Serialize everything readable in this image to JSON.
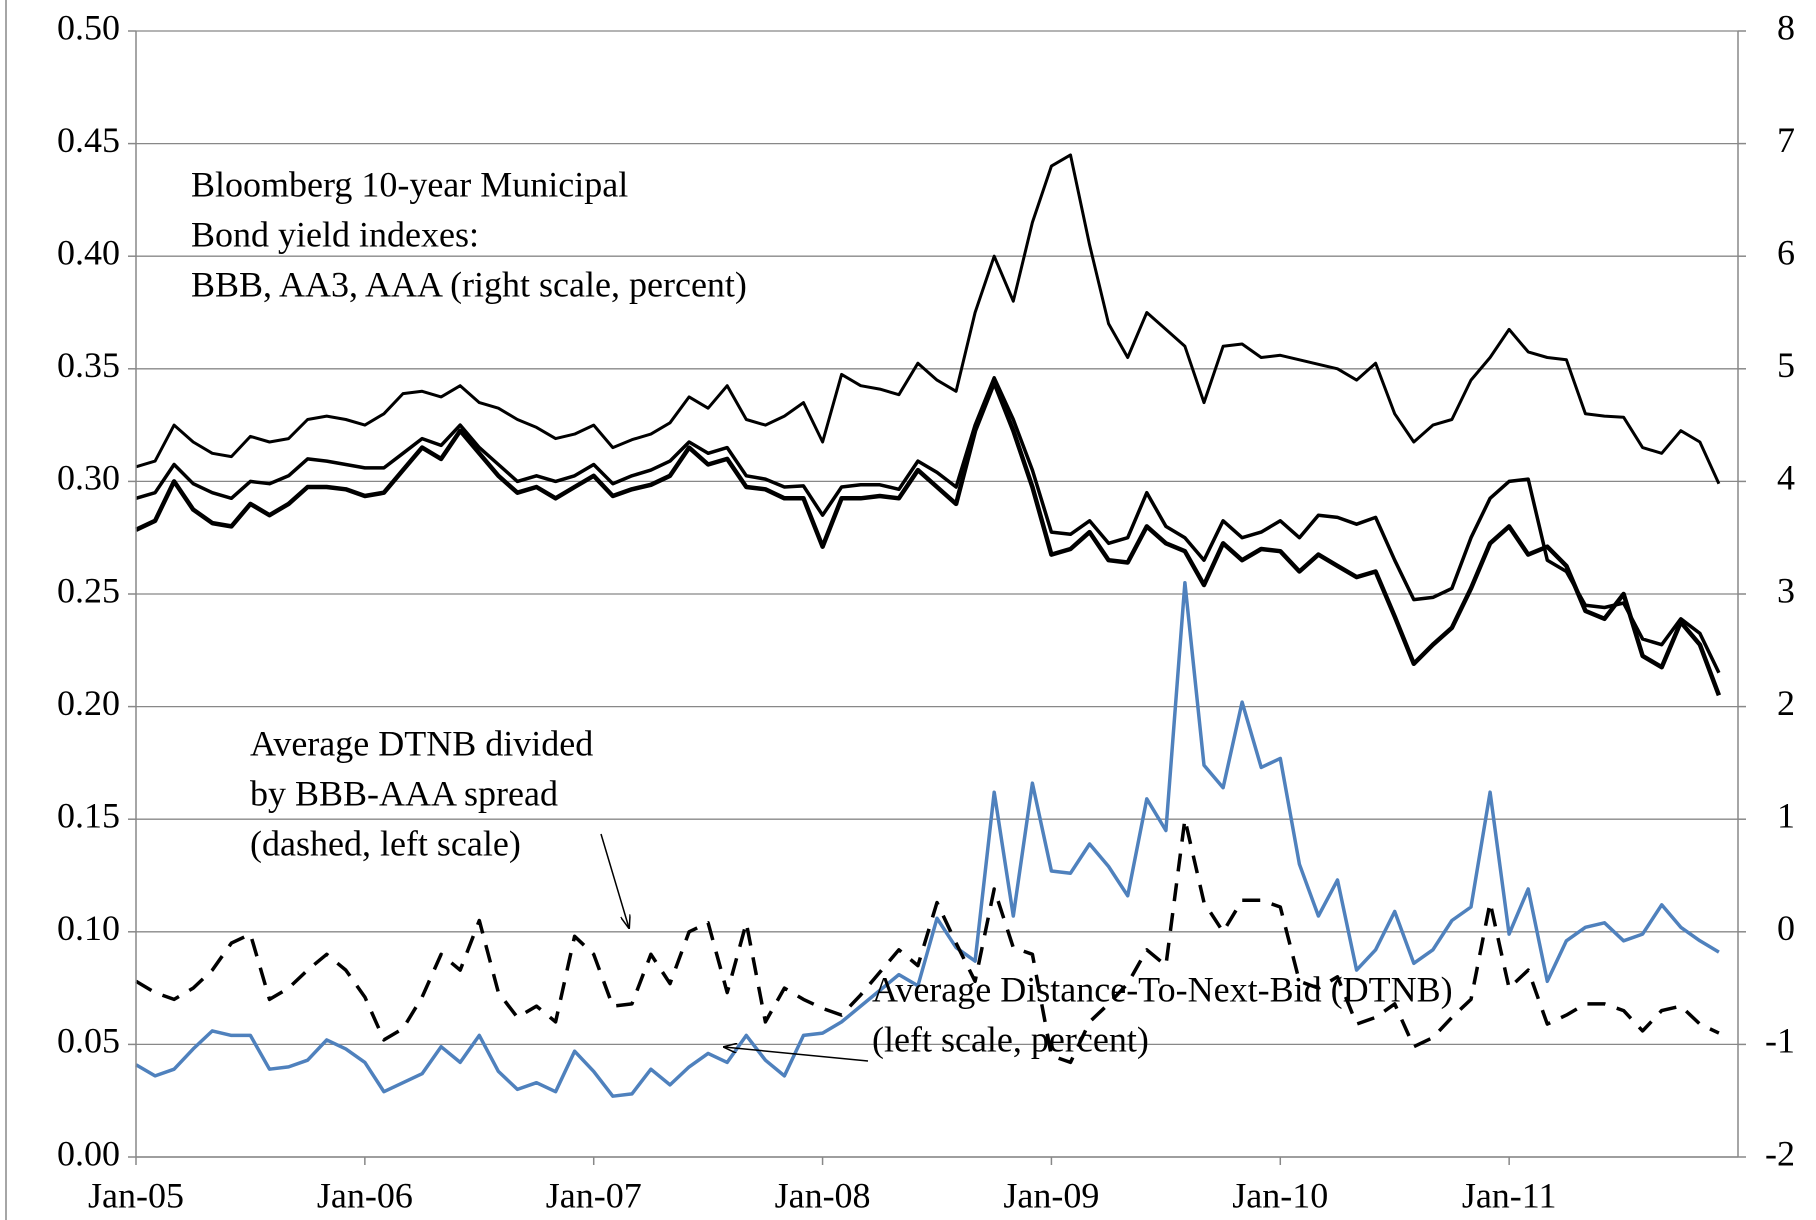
{
  "chart_data": {
    "type": "line",
    "categories": [
      "Jan-05",
      null,
      null,
      null,
      null,
      null,
      null,
      null,
      null,
      null,
      null,
      null,
      "Jan-06",
      null,
      null,
      null,
      null,
      null,
      null,
      null,
      null,
      null,
      null,
      null,
      "Jan-07",
      null,
      null,
      null,
      null,
      null,
      null,
      null,
      null,
      null,
      null,
      null,
      "Jan-08",
      null,
      null,
      null,
      null,
      null,
      null,
      null,
      null,
      null,
      null,
      null,
      "Jan-09",
      null,
      null,
      null,
      null,
      null,
      null,
      null,
      null,
      null,
      null,
      null,
      "Jan-10",
      null,
      null,
      null,
      null,
      null,
      null,
      null,
      null,
      null,
      null,
      null,
      "Jan-11",
      null,
      null,
      null,
      null,
      null,
      null,
      null,
      null,
      null,
      null,
      null
    ],
    "ylim": [
      0,
      0.5
    ],
    "yticks": [
      {
        "value": 0,
        "label": "0.00"
      },
      {
        "value": 0.05,
        "label": "0.05"
      },
      {
        "value": 0.1,
        "label": "0.10"
      },
      {
        "value": 0.15,
        "label": "0.15"
      },
      {
        "value": 0.2,
        "label": "0.20"
      },
      {
        "value": 0.25,
        "label": "0.25"
      },
      {
        "value": 0.3,
        "label": "0.30"
      },
      {
        "value": 0.35,
        "label": "0.35"
      },
      {
        "value": 0.4,
        "label": "0.40"
      },
      {
        "value": 0.45,
        "label": "0.45"
      },
      {
        "value": 0.5,
        "label": "0.50"
      }
    ],
    "y2lim": [
      -2,
      8
    ],
    "y2ticks": [
      -2,
      -1,
      0,
      1,
      2,
      3,
      4,
      5,
      6,
      7,
      8
    ],
    "grid": true,
    "annotations": [
      [
        "Bloomberg 10-year Municipal",
        "Bond yield indexes:",
        "BBB, AA3, AAA (right scale, percent)"
      ],
      [
        "Average DTNB divided",
        "by BBB-AAA spread",
        "(dashed, left scale)"
      ],
      [
        "Average Distance-To-Next-Bid (DTNB)",
        "(left scale, percent)"
      ]
    ],
    "series": [
      {
        "color": "#4f81bd",
        "axis": "y",
        "dashed": false,
        "values": [
          0.041,
          0.036,
          0.039,
          0.048,
          0.056,
          0.054,
          0.054,
          0.039,
          0.04,
          0.043,
          0.052,
          0.048,
          0.042,
          0.029,
          0.033,
          0.037,
          0.049,
          0.042,
          0.054,
          0.038,
          0.03,
          0.033,
          0.029,
          0.047,
          0.038,
          0.027,
          0.028,
          0.039,
          0.032,
          0.04,
          0.046,
          0.042,
          0.054,
          0.043,
          0.036,
          0.054,
          0.055,
          0.06,
          0.067,
          0.074,
          0.081,
          0.076,
          0.106,
          0.093,
          0.087,
          0.162,
          0.107,
          0.166,
          0.127,
          0.126,
          0.139,
          0.129,
          0.116,
          0.159,
          0.145,
          0.255,
          0.174,
          0.164,
          0.202,
          0.173,
          0.177,
          0.13,
          0.107,
          0.123,
          0.083,
          0.092,
          0.109,
          0.086,
          0.092,
          0.105,
          0.111,
          0.162,
          0.099,
          0.119,
          0.078,
          0.096,
          0.102,
          0.104,
          0.096,
          0.099,
          0.112,
          0.102,
          0.096,
          0.091
        ]
      },
      {
        "color": "#000000",
        "axis": "y",
        "dashed": true,
        "values": [
          0.078,
          0.073,
          0.07,
          0.075,
          0.083,
          0.095,
          0.099,
          0.07,
          0.075,
          0.083,
          0.09,
          0.083,
          0.071,
          0.052,
          0.057,
          0.071,
          0.09,
          0.083,
          0.105,
          0.073,
          0.062,
          0.067,
          0.06,
          0.098,
          0.09,
          0.067,
          0.068,
          0.09,
          0.077,
          0.1,
          0.104,
          0.073,
          0.104,
          0.06,
          0.075,
          0.07,
          0.066,
          0.063,
          0.072,
          0.082,
          0.092,
          0.085,
          0.113,
          0.095,
          0.078,
          0.119,
          0.093,
          0.09,
          0.045,
          0.042,
          0.06,
          0.068,
          0.077,
          0.092,
          0.085,
          0.15,
          0.113,
          0.1,
          0.114,
          0.114,
          0.111,
          0.078,
          0.075,
          0.08,
          0.059,
          0.062,
          0.068,
          0.049,
          0.053,
          0.062,
          0.07,
          0.113,
          0.075,
          0.083,
          0.059,
          0.063,
          0.068,
          0.068,
          0.065,
          0.056,
          0.065,
          0.067,
          0.059,
          0.055
        ]
      },
      {
        "color": "#000000",
        "axis": "y2",
        "dashed": false,
        "values": [
          4.13,
          4.18,
          4.5,
          4.35,
          4.25,
          4.22,
          4.4,
          4.35,
          4.38,
          4.55,
          4.58,
          4.55,
          4.5,
          4.6,
          4.78,
          4.8,
          4.75,
          4.85,
          4.7,
          4.65,
          4.55,
          4.48,
          4.38,
          4.42,
          4.5,
          4.3,
          4.37,
          4.42,
          4.52,
          4.75,
          4.65,
          4.85,
          4.55,
          4.5,
          4.58,
          4.7,
          4.35,
          4.95,
          4.85,
          4.82,
          4.77,
          5.05,
          4.9,
          4.8,
          5.5,
          6.0,
          5.6,
          6.3,
          6.8,
          6.9,
          6.1,
          5.4,
          5.1,
          5.5,
          5.35,
          5.2,
          4.7,
          5.2,
          5.22,
          5.1,
          5.12,
          5.08,
          5.04,
          5.0,
          4.9,
          5.05,
          4.6,
          4.35,
          4.5,
          4.55,
          4.9,
          5.1,
          5.35,
          5.15,
          5.1,
          5.08,
          4.6,
          4.58,
          4.57,
          4.3,
          4.25,
          4.45,
          4.35,
          3.98
        ]
      },
      {
        "color": "#000000",
        "axis": "y2",
        "dashed": false,
        "values": [
          3.85,
          3.9,
          4.15,
          3.98,
          3.9,
          3.85,
          4.0,
          3.98,
          4.05,
          4.2,
          4.18,
          4.15,
          4.12,
          4.12,
          4.25,
          4.38,
          4.32,
          4.5,
          4.3,
          4.15,
          4.0,
          4.05,
          4.0,
          4.05,
          4.15,
          3.98,
          4.05,
          4.1,
          4.18,
          4.35,
          4.25,
          4.3,
          4.05,
          4.02,
          3.95,
          3.96,
          3.7,
          3.95,
          3.97,
          3.97,
          3.93,
          4.18,
          4.08,
          3.95,
          4.5,
          4.92,
          4.55,
          4.1,
          3.55,
          3.53,
          3.65,
          3.45,
          3.5,
          3.9,
          3.6,
          3.5,
          3.3,
          3.65,
          3.5,
          3.55,
          3.65,
          3.5,
          3.7,
          3.68,
          3.62,
          3.68,
          3.3,
          2.95,
          2.97,
          3.05,
          3.5,
          3.85,
          4.0,
          4.02,
          3.3,
          3.2,
          2.9,
          2.88,
          2.92,
          2.6,
          2.55,
          2.78,
          2.65,
          2.3
        ]
      },
      {
        "color": "#000000",
        "axis": "y2",
        "dashed": false,
        "values": [
          3.57,
          3.65,
          4.0,
          3.75,
          3.63,
          3.6,
          3.8,
          3.7,
          3.8,
          3.95,
          3.95,
          3.93,
          3.87,
          3.9,
          4.1,
          4.3,
          4.2,
          4.45,
          4.25,
          4.05,
          3.9,
          3.95,
          3.85,
          3.95,
          4.05,
          3.87,
          3.93,
          3.97,
          4.05,
          4.3,
          4.15,
          4.2,
          3.95,
          3.93,
          3.85,
          3.85,
          3.42,
          3.85,
          3.85,
          3.87,
          3.85,
          4.1,
          3.95,
          3.8,
          4.45,
          4.88,
          4.45,
          3.95,
          3.35,
          3.4,
          3.55,
          3.3,
          3.28,
          3.6,
          3.45,
          3.38,
          3.08,
          3.45,
          3.3,
          3.4,
          3.38,
          3.2,
          3.35,
          3.25,
          3.15,
          3.2,
          2.8,
          2.38,
          2.55,
          2.7,
          3.05,
          3.45,
          3.6,
          3.35,
          3.42,
          3.25,
          2.85,
          2.78,
          3.0,
          2.45,
          2.35,
          2.75,
          2.55,
          2.1
        ]
      }
    ]
  }
}
